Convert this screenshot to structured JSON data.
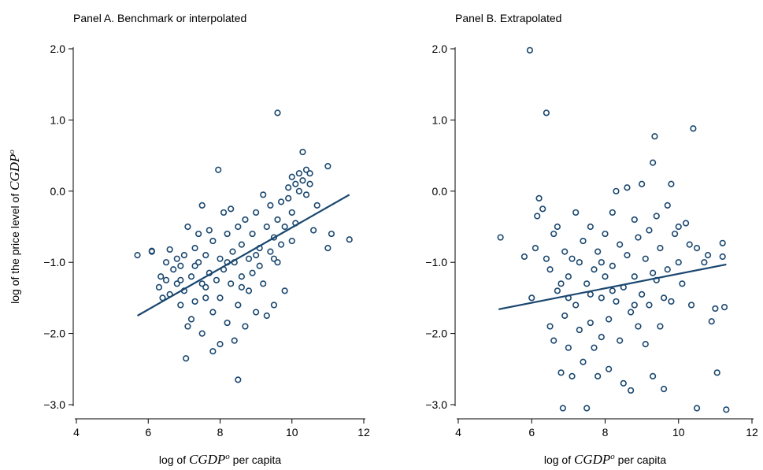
{
  "chart_data": [
    {
      "type": "scatter",
      "title": "Panel A. Benchmark or interpolated",
      "color": "#1a476f",
      "xlabel": {
        "prefix": "log of ",
        "var": "CGDP",
        "sup": "o",
        "suffix": " per capita"
      },
      "ylabel": {
        "prefix": "log of the price level of ",
        "var": "CGDP",
        "sup": "o"
      },
      "xlim": [
        4,
        12
      ],
      "ylim": [
        -3,
        2
      ],
      "xticks": [
        4,
        6,
        8,
        10,
        12
      ],
      "yticks": [
        {
          "value": 2,
          "label": "2.0"
        },
        {
          "value": 1,
          "label": "1.0"
        },
        {
          "value": 0,
          "label": "0.0"
        },
        {
          "value": -1,
          "label": "−1.0"
        },
        {
          "value": -2,
          "label": "−2.0"
        },
        {
          "value": -3,
          "label": "−3.0"
        }
      ],
      "x": [
        5.7,
        6.1,
        6.1,
        6.3,
        6.35,
        6.4,
        6.5,
        6.5,
        6.6,
        6.6,
        6.7,
        6.8,
        6.8,
        6.9,
        6.9,
        7.0,
        7.0,
        7.05,
        7.1,
        7.1,
        7.2,
        7.2,
        7.3,
        7.3,
        7.4,
        7.4,
        7.5,
        7.5,
        7.5,
        7.6,
        7.6,
        7.7,
        7.7,
        7.8,
        7.8,
        7.8,
        7.9,
        7.95,
        8.0,
        8.0,
        8.0,
        8.1,
        8.1,
        8.2,
        8.2,
        8.3,
        8.3,
        8.35,
        8.4,
        8.4,
        8.5,
        8.5,
        8.5,
        8.6,
        8.6,
        8.7,
        8.7,
        8.8,
        8.8,
        8.9,
        8.9,
        9.0,
        9.0,
        9.1,
        9.1,
        9.2,
        9.2,
        9.3,
        9.3,
        9.4,
        9.4,
        9.5,
        9.5,
        9.6,
        9.6,
        9.6,
        9.7,
        9.7,
        9.8,
        9.8,
        9.9,
        9.9,
        10.0,
        10.0,
        10.0,
        10.1,
        10.1,
        10.2,
        10.2,
        10.3,
        10.3,
        10.4,
        10.4,
        10.5,
        10.5,
        10.6,
        10.7,
        11.0,
        11.0,
        11.1,
        11.6,
        6.9,
        7.6,
        8.2,
        9.0,
        9.5,
        7.3,
        8.6
      ],
      "y": [
        -0.9,
        -0.84,
        -0.85,
        -1.35,
        -1.2,
        -1.5,
        -1.0,
        -1.25,
        -1.45,
        -0.82,
        -1.1,
        -1.3,
        -0.95,
        -1.6,
        -1.05,
        -0.9,
        -1.4,
        -2.35,
        -1.9,
        -0.5,
        -1.8,
        -1.2,
        -0.8,
        -1.55,
        -1.0,
        -0.6,
        -1.3,
        -0.2,
        -2.0,
        -0.9,
        -1.5,
        -0.55,
        -1.15,
        -2.25,
        -0.7,
        -1.7,
        -1.25,
        0.3,
        -0.95,
        -2.15,
        -1.5,
        -0.3,
        -1.1,
        -0.6,
        -1.85,
        -0.25,
        -1.3,
        -0.85,
        -2.1,
        -1.0,
        -2.65,
        -0.5,
        -1.6,
        -0.75,
        -1.2,
        -0.4,
        -1.9,
        -0.95,
        -1.4,
        -0.6,
        -1.15,
        -0.3,
        -1.7,
        -0.8,
        -1.05,
        -0.05,
        -1.3,
        -0.5,
        -1.75,
        -0.85,
        -0.2,
        -1.6,
        -0.65,
        1.1,
        -0.4,
        -1.0,
        -0.15,
        -0.75,
        -0.5,
        -1.4,
        -0.1,
        0.05,
        0.2,
        -0.3,
        -0.7,
        0.1,
        -0.45,
        0.25,
        0.0,
        0.55,
        0.15,
        0.3,
        -0.05,
        0.1,
        0.25,
        -0.55,
        -0.2,
        0.35,
        -0.8,
        -0.6,
        -0.68,
        -1.25,
        -1.35,
        -1.0,
        -0.9,
        -0.95,
        -1.05,
        -1.35
      ],
      "fit": {
        "x": [
          5.7,
          11.6
        ],
        "y": [
          -1.75,
          -0.05
        ]
      }
    },
    {
      "type": "scatter",
      "title": "Panel B. Extrapolated",
      "color": "#1a476f",
      "xlabel": {
        "prefix": "log of ",
        "var": "CGDP",
        "sup": "o",
        "suffix": " per capita"
      },
      "xlim": [
        4,
        12
      ],
      "ylim": [
        -3,
        2
      ],
      "xticks": [
        4,
        6,
        8,
        10,
        12
      ],
      "yticks": [
        {
          "value": 2,
          "label": "2.0"
        },
        {
          "value": 1,
          "label": "1.0"
        },
        {
          "value": 0,
          "label": "0.0"
        },
        {
          "value": -1,
          "label": "−1.0"
        },
        {
          "value": -2,
          "label": "−2.0"
        },
        {
          "value": -3,
          "label": "−3.0"
        }
      ],
      "x": [
        5.15,
        5.8,
        5.95,
        6.0,
        6.1,
        6.15,
        6.2,
        6.3,
        6.4,
        6.4,
        6.5,
        6.5,
        6.6,
        6.6,
        6.7,
        6.7,
        6.8,
        6.85,
        6.9,
        6.9,
        7.0,
        7.0,
        7.1,
        7.1,
        7.2,
        7.2,
        7.3,
        7.3,
        7.4,
        7.4,
        7.5,
        7.5,
        7.6,
        7.6,
        7.7,
        7.7,
        7.8,
        7.8,
        7.9,
        7.9,
        8.0,
        8.0,
        8.1,
        8.1,
        8.2,
        8.2,
        8.3,
        8.3,
        8.4,
        8.4,
        8.5,
        8.5,
        8.6,
        8.6,
        8.7,
        8.7,
        8.8,
        8.8,
        8.9,
        8.9,
        9.0,
        9.0,
        9.1,
        9.1,
        9.2,
        9.2,
        9.3,
        9.3,
        9.35,
        9.4,
        9.4,
        9.5,
        9.5,
        9.6,
        9.6,
        9.7,
        9.7,
        9.8,
        9.8,
        9.9,
        10.0,
        10.0,
        10.1,
        10.2,
        10.3,
        10.35,
        10.4,
        10.5,
        10.5,
        10.7,
        10.8,
        10.9,
        11.0,
        11.05,
        11.2,
        11.2,
        11.25,
        11.3,
        7.0,
        7.6,
        8.2,
        8.8,
        9.3,
        6.8,
        7.9
      ],
      "y": [
        -0.65,
        -0.92,
        1.98,
        -1.5,
        -0.8,
        -0.35,
        -0.1,
        -0.25,
        1.1,
        -0.95,
        -1.1,
        -1.9,
        -0.6,
        -2.1,
        -0.5,
        -1.4,
        -2.55,
        -3.05,
        -0.85,
        -1.75,
        -1.2,
        -2.2,
        -0.95,
        -2.6,
        -0.3,
        -1.6,
        -1.0,
        -1.95,
        -0.7,
        -2.4,
        -3.05,
        -1.3,
        -1.85,
        -0.5,
        -1.1,
        -2.2,
        -2.6,
        -0.85,
        -1.5,
        -2.05,
        -0.6,
        -1.2,
        -1.8,
        -2.5,
        -0.3,
        -1.05,
        0.0,
        -1.55,
        -2.1,
        -0.75,
        -2.7,
        -1.35,
        0.05,
        -0.9,
        -1.7,
        -2.8,
        -0.4,
        -1.2,
        -1.9,
        -0.65,
        0.1,
        -1.45,
        -2.15,
        -0.95,
        -1.6,
        -0.55,
        0.4,
        -2.6,
        0.77,
        -1.25,
        -0.35,
        -1.9,
        -0.8,
        -2.78,
        -1.5,
        -0.2,
        -1.1,
        0.1,
        -1.55,
        -0.6,
        -1.0,
        -0.5,
        -1.3,
        -0.45,
        -0.75,
        -1.6,
        0.88,
        -0.8,
        -3.05,
        -1.0,
        -0.9,
        -1.83,
        -1.65,
        -2.55,
        -0.73,
        -0.92,
        -1.63,
        -3.07,
        -1.5,
        -1.45,
        -1.4,
        -1.6,
        -1.15,
        -1.3,
        -1.0
      ],
      "fit": {
        "x": [
          5.1,
          11.3
        ],
        "y": [
          -1.66,
          -1.03
        ]
      }
    }
  ]
}
